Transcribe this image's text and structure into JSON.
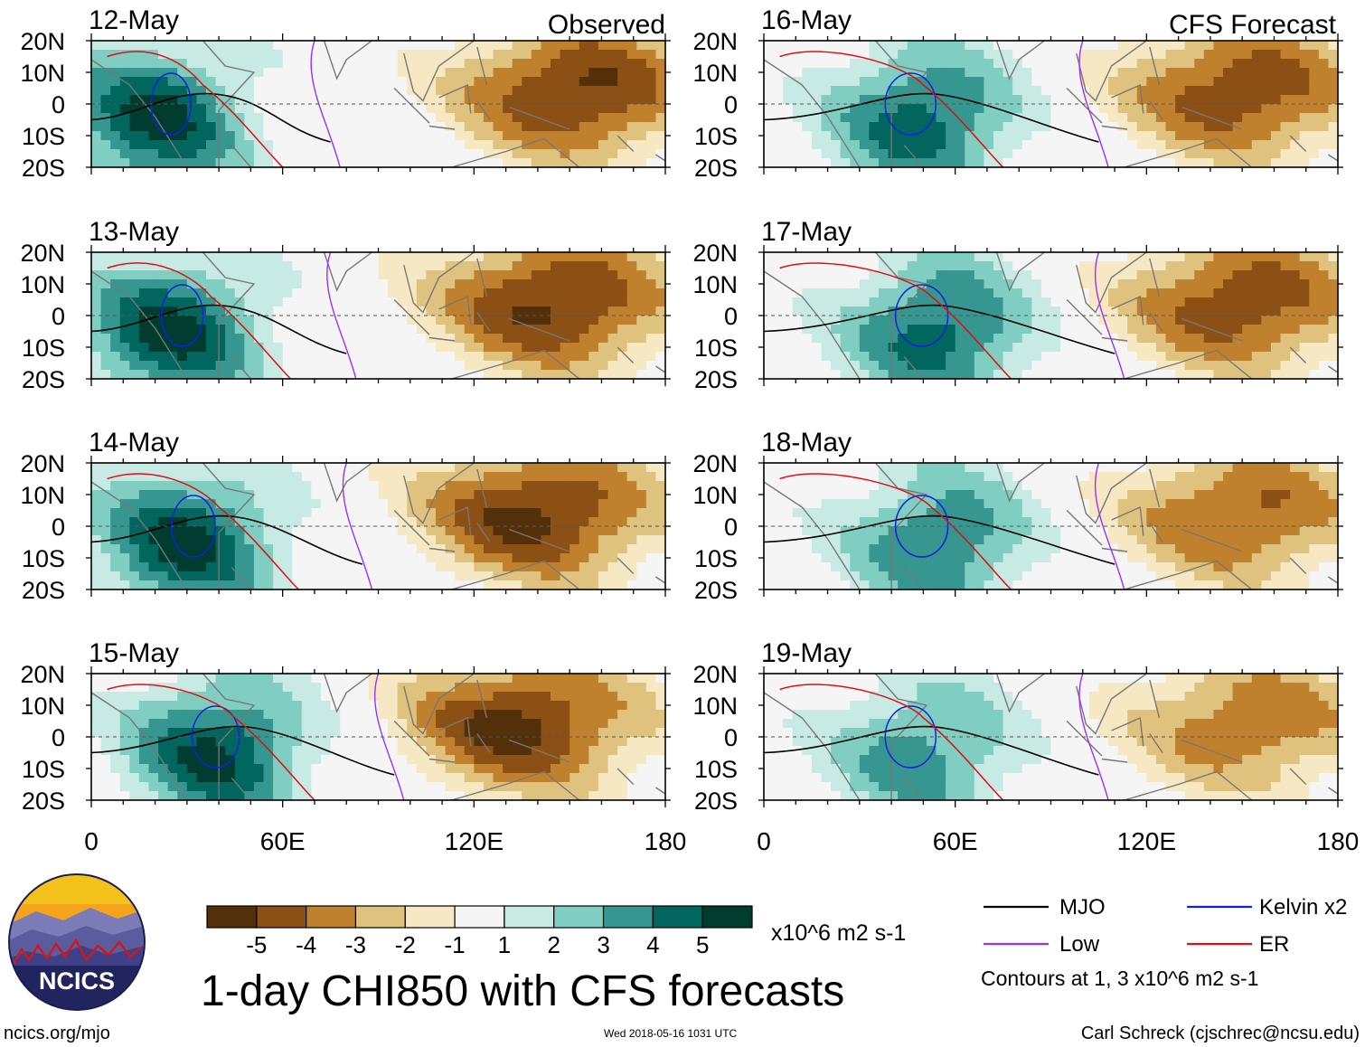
{
  "header": {
    "left_title": "Observed",
    "right_title": "CFS Forecast"
  },
  "chart_data": {
    "type": "heatmap",
    "variable": "1-day CHI850 with CFS forecasts",
    "units": "x10^6 m2 s-1",
    "x_axis": {
      "range": [
        0,
        180
      ],
      "ticks": [
        0,
        60,
        120,
        180
      ],
      "tick_labels": [
        "0",
        "60E",
        "120E",
        "180"
      ]
    },
    "y_axis": {
      "range": [
        -20,
        20
      ],
      "ticks": [
        20,
        10,
        0,
        -10,
        -20
      ],
      "tick_labels": [
        "20N",
        "10N",
        "0",
        "10S",
        "20S"
      ]
    },
    "panels": [
      {
        "date": "12-May",
        "column": "left",
        "source": "Observed",
        "min_lon": 145,
        "max_lon": 160,
        "max_val": 5.5,
        "pos_center_lon": 20
      },
      {
        "date": "13-May",
        "column": "left",
        "source": "Observed",
        "min_lon": 130,
        "max_lon": 160,
        "max_val": 5.5,
        "pos_center_lon": 25
      },
      {
        "date": "14-May",
        "column": "left",
        "source": "Observed",
        "min_lon": 125,
        "max_lon": 155,
        "max_val": 5.5,
        "pos_center_lon": 30
      },
      {
        "date": "15-May",
        "column": "left",
        "source": "Observed",
        "min_lon": 120,
        "max_lon": 150,
        "max_val": 5.5,
        "pos_center_lon": 40
      },
      {
        "date": "16-May",
        "column": "right",
        "source": "CFS Forecast",
        "min_lon": 130,
        "max_lon": 170,
        "max_val": 5,
        "pos_center_lon": 50
      },
      {
        "date": "17-May",
        "column": "right",
        "source": "CFS Forecast",
        "min_lon": 135,
        "max_lon": 165,
        "max_val": 5,
        "pos_center_lon": 55
      },
      {
        "date": "18-May",
        "column": "right",
        "source": "CFS Forecast",
        "min_lon": 140,
        "max_lon": 160,
        "max_val": 4.5,
        "pos_center_lon": 55
      },
      {
        "date": "19-May",
        "column": "right",
        "source": "CFS Forecast",
        "min_lon": 145,
        "max_lon": 160,
        "max_val": 4,
        "pos_center_lon": 50
      }
    ],
    "colorbar": {
      "ticks": [
        "-5",
        "-4",
        "-3",
        "-2",
        "-1",
        "1",
        "2",
        "3",
        "4",
        "5"
      ],
      "colors": [
        "#54300a",
        "#8c5014",
        "#bf812d",
        "#dfc27d",
        "#f6e8c3",
        "#f5f5f5",
        "#c7eae5",
        "#80cdc1",
        "#35978f",
        "#01665e",
        "#003c30"
      ]
    },
    "legend": [
      {
        "label": "MJO",
        "color": "#000000"
      },
      {
        "label": "Kelvin x2",
        "color": "#1020e0"
      },
      {
        "label": "Low",
        "color": "#9b30ff"
      },
      {
        "label": "ER",
        "color": "#e01010"
      }
    ],
    "contour_note": "Contours at 1, 3 x10^6 m2 s-1"
  },
  "footer": {
    "logo_text": "NCICS",
    "url": "ncics.org/mjo",
    "timestamp": "Wed 2018-05-16 1031 UTC",
    "credit": "Carl Schreck (cjschrec@ncsu.edu)"
  },
  "colors": {
    "dashed_equator": "#555555",
    "coast": "#777777"
  }
}
